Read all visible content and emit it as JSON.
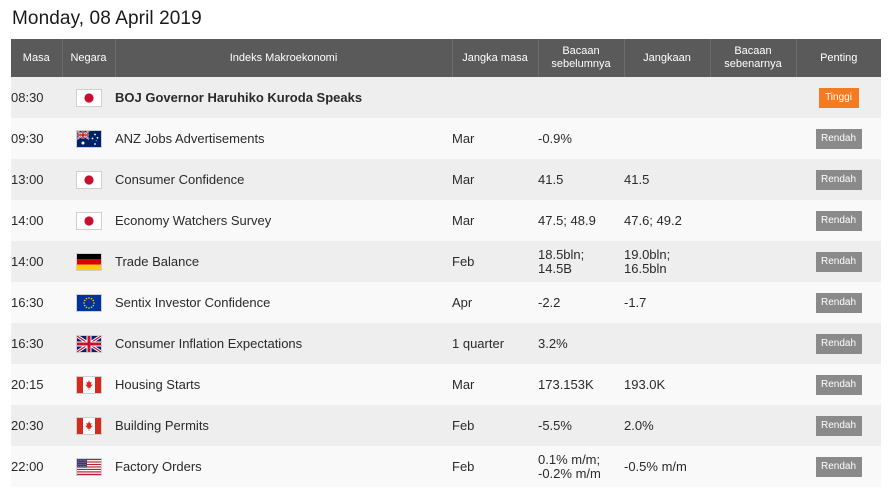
{
  "page": {
    "date_title": "Monday, 08 April 2019"
  },
  "columns": {
    "time": "Masa",
    "country": "Negara",
    "indicator": "Indeks Makroekonomi",
    "period": "Jangka masa",
    "previous": "Bacaan\nsebelumnya",
    "forecast": "Jangkaan",
    "actual": "Bacaan\nsebenarnya",
    "importance": "Penting"
  },
  "colors": {
    "header_bg": "#5a5a5a",
    "row_odd": "#eeeeee",
    "row_even": "#f9f9f9",
    "badge_low": "#8a8a8a",
    "badge_high": "#f47b20"
  },
  "rows": [
    {
      "time": "08:30",
      "flag": "japan-flag-icon",
      "event": "BOJ Governor Haruhiko Kuroda Speaks",
      "period": "",
      "previous": "",
      "forecast": "",
      "actual": "",
      "importance": "Tinggi"
    },
    {
      "time": "09:30",
      "flag": "australia-flag-icon",
      "event": "ANZ Jobs Advertisements",
      "period": "Mar",
      "previous": "-0.9%",
      "forecast": "",
      "actual": "",
      "importance": "Rendah"
    },
    {
      "time": "13:00",
      "flag": "japan-flag-icon",
      "event": "Consumer Confidence",
      "period": "Mar",
      "previous": "41.5",
      "forecast": "41.5",
      "actual": "",
      "importance": "Rendah"
    },
    {
      "time": "14:00",
      "flag": "japan-flag-icon",
      "event": "Economy Watchers Survey",
      "period": "Mar",
      "previous": "47.5; 48.9",
      "forecast": "47.6; 49.2",
      "actual": "",
      "importance": "Rendah"
    },
    {
      "time": "14:00",
      "flag": "germany-flag-icon",
      "event": "Trade Balance",
      "period": "Feb",
      "previous": "18.5bln;\n14.5B",
      "forecast": "19.0bln;\n16.5bln",
      "actual": "",
      "importance": "Rendah"
    },
    {
      "time": "16:30",
      "flag": "eu-flag-icon",
      "event": "Sentix Investor Confidence",
      "period": "Apr",
      "previous": "-2.2",
      "forecast": "-1.7",
      "actual": "",
      "importance": "Rendah"
    },
    {
      "time": "16:30",
      "flag": "uk-flag-icon",
      "event": "Consumer Inflation Expectations",
      "period": "1 quarter",
      "previous": "3.2%",
      "forecast": "",
      "actual": "",
      "importance": "Rendah"
    },
    {
      "time": "20:15",
      "flag": "canada-flag-icon",
      "event": "Housing Starts",
      "period": "Mar",
      "previous": "173.153K",
      "forecast": "193.0K",
      "actual": "",
      "importance": "Rendah"
    },
    {
      "time": "20:30",
      "flag": "canada-flag-icon",
      "event": "Building Permits",
      "period": "Feb",
      "previous": "-5.5%",
      "forecast": "2.0%",
      "actual": "",
      "importance": "Rendah"
    },
    {
      "time": "22:00",
      "flag": "usa-flag-icon",
      "event": "Factory Orders",
      "period": "Feb",
      "previous": "0.1% m/m;\n-0.2% m/m",
      "forecast": "-0.5% m/m",
      "actual": "",
      "importance": "Rendah"
    }
  ]
}
